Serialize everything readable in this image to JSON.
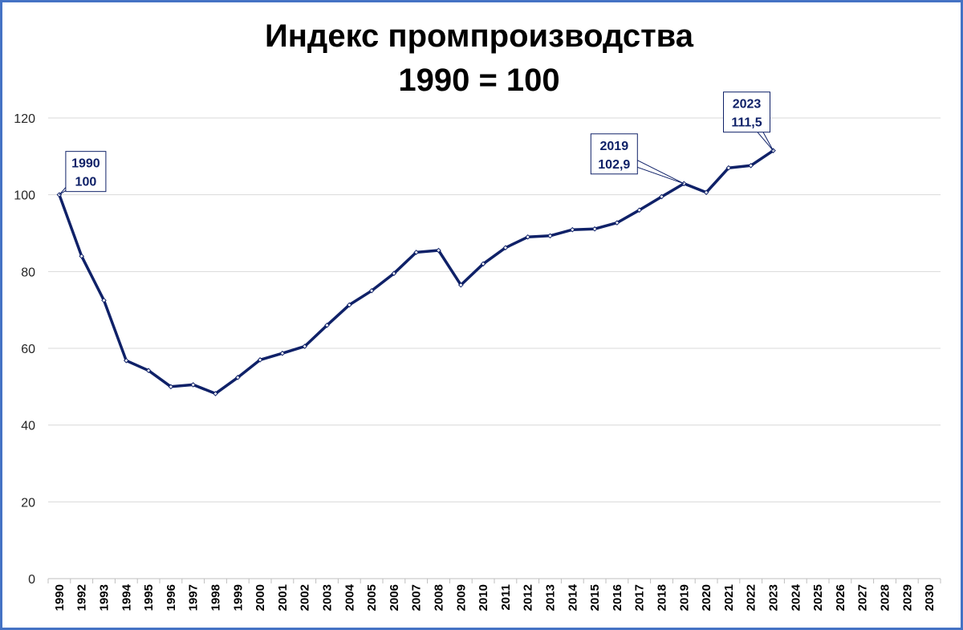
{
  "chart_data": {
    "type": "line",
    "title": "Индекс промпроизводства",
    "subtitle": "1990 = 100",
    "xlabel": "",
    "ylabel": "",
    "ylim": [
      0,
      120
    ],
    "yticks": [
      0,
      20,
      40,
      60,
      80,
      100,
      120
    ],
    "grid": true,
    "legend": "none",
    "line_color": "#0f2168",
    "x": [
      "1990",
      "1992",
      "1993",
      "1994",
      "1995",
      "1996",
      "1997",
      "1998",
      "1999",
      "2000",
      "2001",
      "2002",
      "2003",
      "2004",
      "2005",
      "2006",
      "2007",
      "2008",
      "2009",
      "2010",
      "2011",
      "2012",
      "2013",
      "2014",
      "2015",
      "2016",
      "2017",
      "2018",
      "2019",
      "2020",
      "2021",
      "2022",
      "2023",
      "2024",
      "2025",
      "2026",
      "2027",
      "2028",
      "2029",
      "2030"
    ],
    "series": [
      {
        "name": "",
        "values": [
          100,
          84,
          72.5,
          56.8,
          54.2,
          50,
          50.5,
          48.2,
          52.4,
          57,
          58.7,
          60.5,
          66,
          71.3,
          75,
          79.5,
          85,
          85.5,
          76.5,
          82,
          86.2,
          89,
          89.3,
          90.9,
          91.1,
          92.7,
          96,
          99.5,
          102.9,
          100.6,
          107,
          107.6,
          111.5,
          null,
          null,
          null,
          null,
          null,
          null,
          null
        ]
      }
    ],
    "annotations": [
      {
        "year": "1990",
        "label": "1990",
        "value_label": "100",
        "value": 100
      },
      {
        "year": "2019",
        "label": "2019",
        "value_label": "102,9",
        "value": 102.9
      },
      {
        "year": "2023",
        "label": "2023",
        "value_label": "111,5",
        "value": 111.5
      }
    ]
  }
}
